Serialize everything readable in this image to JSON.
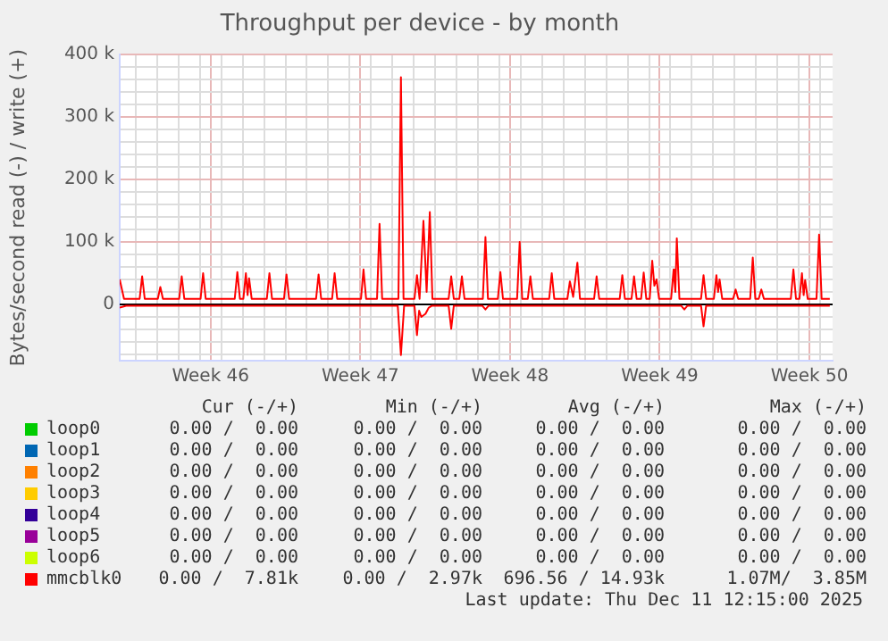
{
  "chart_data": {
    "type": "line",
    "title": "Throughput per device - by month",
    "ylabel": "Bytes/second read (-) / write (+)",
    "xlim": [
      "2025-11-08T06:00",
      "2025-12-11T14:00"
    ],
    "xticks": [
      {
        "value": "2025-11-09T00:00",
        "label": null
      },
      {
        "value": "2025-11-10T00:00",
        "label": null
      },
      {
        "value": "2025-11-11T00:00",
        "label": null
      },
      {
        "value": "2025-11-12T00:00",
        "label": null
      },
      {
        "value": "2025-11-12T12:00",
        "label": "Week 46"
      },
      {
        "value": "2025-11-13T00:00",
        "label": null
      },
      {
        "value": "2025-11-14T00:00",
        "label": null
      },
      {
        "value": "2025-11-15T00:00",
        "label": null
      },
      {
        "value": "2025-11-16T00:00",
        "label": null
      },
      {
        "value": "2025-11-17T00:00",
        "label": null
      },
      {
        "value": "2025-11-18T00:00",
        "label": null
      },
      {
        "value": "2025-11-19T00:00",
        "label": null
      },
      {
        "value": "2025-11-19T12:00",
        "label": "Week 47"
      },
      {
        "value": "2025-11-20T00:00",
        "label": null
      },
      {
        "value": "2025-11-21T00:00",
        "label": null
      },
      {
        "value": "2025-11-22T00:00",
        "label": null
      },
      {
        "value": "2025-11-23T00:00",
        "label": null
      },
      {
        "value": "2025-11-24T00:00",
        "label": null
      },
      {
        "value": "2025-11-25T00:00",
        "label": null
      },
      {
        "value": "2025-11-26T00:00",
        "label": null
      },
      {
        "value": "2025-11-26T12:00",
        "label": "Week 48"
      },
      {
        "value": "2025-11-27T00:00",
        "label": null
      },
      {
        "value": "2025-11-28T00:00",
        "label": null
      },
      {
        "value": "2025-11-29T00:00",
        "label": null
      },
      {
        "value": "2025-11-30T00:00",
        "label": null
      },
      {
        "value": "2025-12-01T00:00",
        "label": null
      },
      {
        "value": "2025-12-02T00:00",
        "label": null
      },
      {
        "value": "2025-12-03T00:00",
        "label": null
      },
      {
        "value": "2025-12-03T12:00",
        "label": "Week 49"
      },
      {
        "value": "2025-12-04T00:00",
        "label": null
      },
      {
        "value": "2025-12-05T00:00",
        "label": null
      },
      {
        "value": "2025-12-06T00:00",
        "label": null
      },
      {
        "value": "2025-12-07T00:00",
        "label": null
      },
      {
        "value": "2025-12-08T00:00",
        "label": null
      },
      {
        "value": "2025-12-09T00:00",
        "label": null
      },
      {
        "value": "2025-12-10T00:00",
        "label": null
      },
      {
        "value": "2025-12-10T12:00",
        "label": "Week 50"
      },
      {
        "value": "2025-12-11T00:00",
        "label": null
      }
    ],
    "ylim": [
      -90000,
      400000
    ],
    "yticks": [
      {
        "value": -80000,
        "label": null
      },
      {
        "value": -60000,
        "label": null
      },
      {
        "value": -40000,
        "label": null
      },
      {
        "value": -20000,
        "label": null
      },
      {
        "value": 0,
        "label": "0"
      },
      {
        "value": 20000,
        "label": null
      },
      {
        "value": 40000,
        "label": null
      },
      {
        "value": 60000,
        "label": null
      },
      {
        "value": 80000,
        "label": null
      },
      {
        "value": 100000,
        "label": "100 k"
      },
      {
        "value": 120000,
        "label": null
      },
      {
        "value": 140000,
        "label": null
      },
      {
        "value": 160000,
        "label": null
      },
      {
        "value": 180000,
        "label": null
      },
      {
        "value": 200000,
        "label": "200 k"
      },
      {
        "value": 220000,
        "label": null
      },
      {
        "value": 240000,
        "label": null
      },
      {
        "value": 260000,
        "label": null
      },
      {
        "value": 280000,
        "label": null
      },
      {
        "value": 300000,
        "label": "300 k"
      },
      {
        "value": 320000,
        "label": null
      },
      {
        "value": 340000,
        "label": null
      },
      {
        "value": 360000,
        "label": null
      },
      {
        "value": 380000,
        "label": null
      },
      {
        "value": 400000,
        "label": "400 k"
      }
    ],
    "grid": true,
    "legend": "bottom",
    "marker": "none",
    "line_style": "solid",
    "ref_lines": [
      {
        "axis": "y",
        "value": 0,
        "color": "#000000"
      }
    ],
    "series": [
      {
        "name": "loop0",
        "color": "#00cc00"
      },
      {
        "name": "loop1",
        "color": "#0066b3"
      },
      {
        "name": "loop2",
        "color": "#ff8000"
      },
      {
        "name": "loop3",
        "color": "#ffcc00"
      },
      {
        "name": "loop4",
        "color": "#330099"
      },
      {
        "name": "loop5",
        "color": "#990099"
      },
      {
        "name": "loop6",
        "color": "#ccff00"
      },
      {
        "name": "mmcblk0",
        "color": "#ff0000",
        "x": [
          "2025-11-08T06:00",
          "2025-11-08T10:50",
          "2025-11-09T04:20",
          "2025-11-09T07:10",
          "2025-11-09T10:05",
          "2025-11-10T00:45",
          "2025-11-10T03:35",
          "2025-11-10T06:30",
          "2025-11-11T00:45",
          "2025-11-11T03:35",
          "2025-11-11T06:30",
          "2025-11-12T00:45",
          "2025-11-12T03:35",
          "2025-11-12T06:30",
          "2025-11-13T15:05",
          "2025-11-13T18:00",
          "2025-11-13T20:55",
          "2025-11-14T00:45",
          "2025-11-14T03:35",
          "2025-11-14T05:30",
          "2025-11-14T07:10",
          "2025-11-14T10:05",
          "2025-11-15T03:05",
          "2025-11-15T06:00",
          "2025-11-15T08:55",
          "2025-11-15T22:20",
          "2025-11-16T01:10",
          "2025-11-16T04:05",
          "2025-11-17T10:20",
          "2025-11-17T13:10",
          "2025-11-17T16:05",
          "2025-11-18T04:20",
          "2025-11-18T07:10",
          "2025-11-18T10:05",
          "2025-11-19T12:45",
          "2025-11-19T15:35",
          "2025-11-19T18:30",
          "2025-11-20T06:45",
          "2025-11-20T09:35",
          "2025-11-20T12:30",
          "2025-11-21T06:45",
          "2025-11-21T09:35",
          "2025-11-21T12:30",
          "2025-11-22T00:45",
          "2025-11-22T03:35",
          "2025-11-22T06:30",
          "2025-11-22T10:50",
          "2025-11-22T14:25",
          "2025-11-22T18:00",
          "2025-11-22T20:55",
          "2025-11-23T15:05",
          "2025-11-23T18:00",
          "2025-11-23T20:55",
          "2025-11-24T03:05",
          "2025-11-24T06:00",
          "2025-11-24T08:55",
          "2025-11-25T05:30",
          "2025-11-25T08:25",
          "2025-11-25T11:15",
          "2025-11-25T22:20",
          "2025-11-26T01:10",
          "2025-11-26T04:05",
          "2025-11-26T19:55",
          "2025-11-26T22:50",
          "2025-11-27T01:40",
          "2025-11-27T07:55",
          "2025-11-27T10:50",
          "2025-11-27T13:40",
          "2025-11-28T07:55",
          "2025-11-28T10:50",
          "2025-11-28T13:40",
          "2025-11-29T04:20",
          "2025-11-29T07:10",
          "2025-11-29T10:50",
          "2025-11-29T15:35",
          "2025-11-29T18:30",
          "2025-11-30T10:20",
          "2025-11-30T13:10",
          "2025-11-30T16:05",
          "2025-12-01T15:05",
          "2025-12-01T18:00",
          "2025-12-01T20:55",
          "2025-12-02T04:20",
          "2025-12-02T07:10",
          "2025-12-02T10:05",
          "2025-12-02T15:05",
          "2025-12-02T18:00",
          "2025-12-02T20:55",
          "2025-12-03T00:45",
          "2025-12-03T03:35",
          "2025-12-03T06:00",
          "2025-12-03T08:25",
          "2025-12-03T11:15",
          "2025-12-04T00:45",
          "2025-12-04T03:35",
          "2025-12-04T05:30",
          "2025-12-04T07:10",
          "2025-12-04T10:05",
          "2025-12-05T10:20",
          "2025-12-05T13:10",
          "2025-12-05T16:05",
          "2025-12-06T00:45",
          "2025-12-06T03:35",
          "2025-12-06T05:30",
          "2025-12-06T07:10",
          "2025-12-06T10:05",
          "2025-12-06T22:20",
          "2025-12-07T01:10",
          "2025-12-07T04:05",
          "2025-12-07T17:30",
          "2025-12-07T20:25",
          "2025-12-07T23:15",
          "2025-12-08T03:05",
          "2025-12-08T06:00",
          "2025-12-08T08:55",
          "2025-12-09T15:05",
          "2025-12-09T18:00",
          "2025-12-09T20:55",
          "2025-12-10T00:45",
          "2025-12-10T03:35",
          "2025-12-10T05:30",
          "2025-12-10T07:10",
          "2025-12-10T10:05",
          "2025-12-10T19:55",
          "2025-12-10T22:50",
          "2025-12-11T01:40",
          "2025-12-11T10:50"
        ],
        "values": [
          40000,
          9000,
          9000,
          45000,
          9000,
          9000,
          28000,
          9000,
          9000,
          45000,
          9000,
          9000,
          50000,
          9000,
          9000,
          52000,
          9000,
          9000,
          50000,
          15000,
          42000,
          9000,
          9000,
          50000,
          9000,
          9000,
          48000,
          9000,
          9000,
          48000,
          9000,
          9000,
          50000,
          9000,
          9000,
          56000,
          9000,
          9000,
          129000,
          9000,
          9000,
          364000,
          9000,
          9000,
          47000,
          9000,
          134000,
          20000,
          148000,
          9000,
          9000,
          45000,
          9000,
          9000,
          45000,
          9000,
          9000,
          108000,
          9000,
          9000,
          52000,
          9000,
          9000,
          100000,
          9000,
          9000,
          45000,
          9000,
          9000,
          50000,
          9000,
          9000,
          37000,
          12000,
          67000,
          9000,
          9000,
          45000,
          9000,
          9000,
          47000,
          9000,
          9000,
          45000,
          9000,
          9000,
          51000,
          9000,
          9000,
          70000,
          30000,
          40000,
          9000,
          9000,
          56000,
          20000,
          106000,
          9000,
          9000,
          47000,
          9000,
          9000,
          47000,
          20000,
          40000,
          9000,
          9000,
          24000,
          9000,
          9000,
          75000,
          9000,
          9000,
          24000,
          9000,
          9000,
          56000,
          9000,
          9000,
          50000,
          15000,
          39000,
          9000,
          9000,
          112000,
          9000,
          9000
        ]
      },
      {
        "color": "#ff0000",
        "x": [
          "2025-11-08T06:00",
          "2025-11-08T13:10",
          "2025-11-21T06:00",
          "2025-11-21T09:35",
          "2025-11-21T13:10",
          "2025-11-22T00:45",
          "2025-11-22T03:35",
          "2025-11-22T06:00",
          "2025-11-22T08:25",
          "2025-11-22T13:10",
          "2025-11-22T16:50",
          "2025-11-22T20:25",
          "2025-11-23T15:05",
          "2025-11-23T18:00",
          "2025-11-23T20:55",
          "2025-11-25T04:50",
          "2025-11-25T08:25",
          "2025-11-25T12:00",
          "2025-12-04T12:00",
          "2025-12-04T15:35",
          "2025-12-04T19:10",
          "2025-12-05T10:20",
          "2025-12-05T13:10",
          "2025-12-05T16:05",
          "2025-12-11T10:50"
        ],
        "values": [
          -5000,
          -2000,
          -2000,
          -81000,
          -2000,
          -2000,
          -49000,
          -10000,
          -20000,
          -15000,
          -5000,
          -2000,
          -2000,
          -39000,
          -2000,
          -2000,
          -8000,
          -2000,
          -2000,
          -8000,
          -2000,
          -2000,
          -35000,
          -2000,
          -2000
        ]
      }
    ],
    "annotations": [
      "Cur (-/+)",
      "Min (-/+)",
      "Avg (-/+)",
      "Max (-/+)",
      "0.00 /  0.00",
      "0.00 /  0.00",
      "0.00 /  0.00",
      "0.00 /  0.00",
      "0.00 /  0.00",
      "0.00 /  0.00",
      "0.00 /  0.00",
      "0.00 /  0.00",
      "0.00 /  0.00",
      "0.00 /  0.00",
      "0.00 /  0.00",
      "0.00 /  0.00",
      "0.00 /  0.00",
      "0.00 /  0.00",
      "0.00 /  0.00",
      "0.00 /  0.00",
      "0.00 /  0.00",
      "0.00 /  0.00",
      "0.00 /  0.00",
      "0.00 /  0.00",
      "0.00 /  0.00",
      "0.00 /  0.00",
      "0.00 /  0.00",
      "0.00 /  0.00",
      "0.00 /  0.00",
      "0.00 /  0.00",
      "0.00 /  0.00",
      "0.00 /  0.00",
      "0.00 /  7.81k",
      "0.00 /  2.97k",
      "696.56 / 14.93k",
      "1.07M/  3.85M",
      "Last update: Thu Dec 11 12:15:00 2025"
    ]
  }
}
